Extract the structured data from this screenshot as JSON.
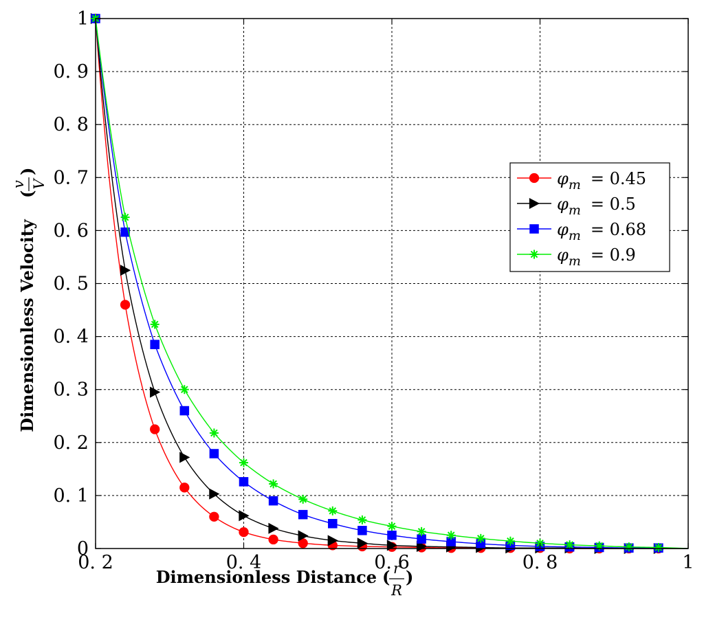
{
  "chart_data": {
    "type": "line",
    "xlabel": "Dimensionless Distance",
    "xlabel_fraction": {
      "numerator": "r",
      "denominator": "R"
    },
    "ylabel": "Dimensionless Velocity",
    "ylabel_fraction": {
      "numerator": "v",
      "denominator": "V"
    },
    "xlim": [
      0.2,
      1.0
    ],
    "ylim": [
      0,
      1.0
    ],
    "xticks": [
      0.2,
      0.4,
      0.6,
      0.8,
      1.0
    ],
    "xtick_labels": [
      "0. 2",
      "0. 4",
      "0. 6",
      "0. 8",
      "1"
    ],
    "yticks": [
      0,
      0.1,
      0.2,
      0.3,
      0.4,
      0.5,
      0.6,
      0.7,
      0.8,
      0.9,
      1.0
    ],
    "ytick_labels": [
      "0",
      "0. 1",
      "0. 2",
      "0. 3",
      "0. 4",
      "0. 5",
      "0. 6",
      "0. 7",
      "0. 8",
      "0. 9",
      "1"
    ],
    "grid": true,
    "legend_position": "right",
    "x": [
      0.2,
      0.24,
      0.28,
      0.32,
      0.36,
      0.4,
      0.44,
      0.48,
      0.52,
      0.56,
      0.6,
      0.64,
      0.68,
      0.72,
      0.76,
      0.8,
      0.84,
      0.88,
      0.92,
      0.96
    ],
    "series": [
      {
        "name": "= 0.45",
        "symbol": "φ",
        "subscript": "m",
        "color": "#ff0000",
        "marker": "circle",
        "values": [
          1.0,
          0.46,
          0.225,
          0.115,
          0.06,
          0.031,
          0.017,
          0.01,
          0.006,
          0.004,
          0.003,
          0.002,
          0.001,
          0.001,
          0.001,
          0.001,
          0.0,
          0.0,
          0.0,
          0.0
        ]
      },
      {
        "name": "= 0.5",
        "symbol": "φ",
        "subscript": "m",
        "color": "#000000",
        "marker": "triangle-right",
        "values": [
          1.0,
          0.525,
          0.295,
          0.172,
          0.103,
          0.062,
          0.038,
          0.024,
          0.015,
          0.01,
          0.006,
          0.004,
          0.003,
          0.002,
          0.001,
          0.001,
          0.001,
          0.0,
          0.0,
          0.0
        ]
      },
      {
        "name": "= 0.68",
        "symbol": "φ",
        "subscript": "m",
        "color": "#0000ff",
        "marker": "square",
        "values": [
          1.0,
          0.597,
          0.385,
          0.26,
          0.179,
          0.126,
          0.09,
          0.064,
          0.047,
          0.034,
          0.025,
          0.018,
          0.013,
          0.009,
          0.006,
          0.004,
          0.003,
          0.002,
          0.001,
          0.001
        ]
      },
      {
        "name": "= 0.9",
        "symbol": "φ",
        "subscript": "m",
        "color": "#00ee00",
        "marker": "star",
        "values": [
          1.0,
          0.625,
          0.423,
          0.3,
          0.218,
          0.162,
          0.122,
          0.093,
          0.071,
          0.054,
          0.042,
          0.032,
          0.025,
          0.019,
          0.014,
          0.01,
          0.007,
          0.005,
          0.003,
          0.002
        ]
      }
    ]
  }
}
